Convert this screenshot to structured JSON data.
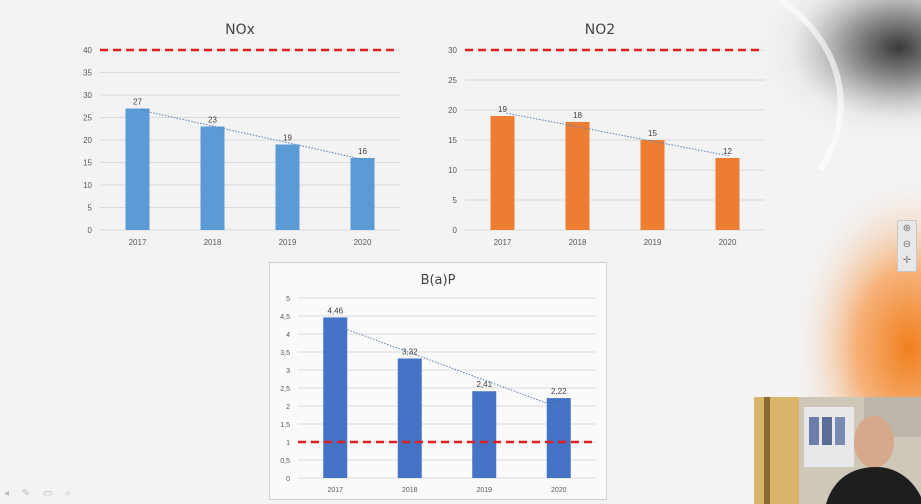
{
  "colors": {
    "nox_bar": "#5b9bd5",
    "no2_bar": "#ed7d31",
    "bap_bar": "#4472c4",
    "limit_line": "#e02020",
    "trend_line": "#5b7fb8",
    "grid": "#d9d9d9",
    "text": "#595959"
  },
  "sidebar_tools": {
    "zoom_in_icon": "zoom-in-icon",
    "zoom_out_icon": "zoom-out-icon",
    "fit_icon": "fit-icon"
  },
  "bottom_toolbar": {
    "icons": [
      "back-icon",
      "pen-icon",
      "slides-icon",
      "zoom-icon"
    ]
  },
  "chart_data": [
    {
      "id": "nox",
      "type": "bar",
      "title": "NOx",
      "categories": [
        "2017",
        "2018",
        "2019",
        "2020"
      ],
      "values": [
        27,
        23,
        19,
        16
      ],
      "data_labels": [
        "27",
        "23",
        "19",
        "16"
      ],
      "ylim": [
        0,
        40
      ],
      "yticks": [
        0,
        5,
        10,
        15,
        20,
        25,
        30,
        35,
        40
      ],
      "ytick_labels": [
        "0",
        "5",
        "10",
        "15",
        "20",
        "25",
        "30",
        "35",
        "40"
      ],
      "limit_value": 40,
      "trendline": true,
      "grid": true
    },
    {
      "id": "no2",
      "type": "bar",
      "title": "NO2",
      "categories": [
        "2017",
        "2018",
        "2019",
        "2020"
      ],
      "values": [
        19,
        18,
        15,
        12
      ],
      "data_labels": [
        "19",
        "18",
        "15",
        "12"
      ],
      "ylim": [
        0,
        30
      ],
      "yticks": [
        0,
        5,
        10,
        15,
        20,
        25,
        30
      ],
      "ytick_labels": [
        "0",
        "5",
        "10",
        "15",
        "20",
        "25",
        "30"
      ],
      "limit_value": 30,
      "trendline": true,
      "grid": true
    },
    {
      "id": "bap",
      "type": "bar",
      "title": "B(a)P",
      "categories": [
        "2017",
        "2018",
        "2019",
        "2020"
      ],
      "values": [
        4.46,
        3.32,
        2.41,
        2.22
      ],
      "data_labels": [
        "4,46",
        "3,32",
        "2,41",
        "2,22"
      ],
      "ylim": [
        0,
        5
      ],
      "yticks": [
        0,
        0.5,
        1,
        1.5,
        2,
        2.5,
        3,
        3.5,
        4,
        4.5,
        5
      ],
      "ytick_labels": [
        "0",
        "0,5",
        "1",
        "1,5",
        "2",
        "2,5",
        "3",
        "3,5",
        "4",
        "4,5",
        "5"
      ],
      "limit_value": 1,
      "trendline": true,
      "grid": true
    }
  ]
}
